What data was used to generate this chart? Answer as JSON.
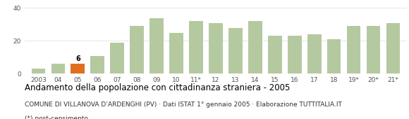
{
  "categories": [
    "2003",
    "04",
    "05",
    "06",
    "07",
    "08",
    "09",
    "10",
    "11*",
    "12",
    "13",
    "14",
    "15",
    "16",
    "17",
    "18",
    "19*",
    "20*",
    "21*"
  ],
  "values": [
    3,
    6,
    6,
    11,
    19,
    29,
    34,
    25,
    32,
    31,
    28,
    32,
    23,
    23,
    24,
    21,
    29,
    29,
    31
  ],
  "bar_color_default": "#b5c9a0",
  "bar_color_highlight": "#e07020",
  "highlight_index": 2,
  "highlight_label": "6",
  "title": "Andamento della popolazione con cittadinanza straniera - 2005",
  "subtitle": "COMUNE DI VILLANOVA D’ARDENGHI (PV) · Dati ISTAT 1° gennaio 2005 · Elaborazione TUTTITALIA.IT",
  "footnote": "(*) post-censimento",
  "ylim": [
    0,
    42
  ],
  "yticks": [
    0,
    20,
    40
  ],
  "grid_color": "#cccccc",
  "background_color": "#ffffff",
  "title_fontsize": 8.5,
  "subtitle_fontsize": 6.5,
  "footnote_fontsize": 6.5,
  "tick_fontsize": 6.5,
  "label_fontsize": 7
}
